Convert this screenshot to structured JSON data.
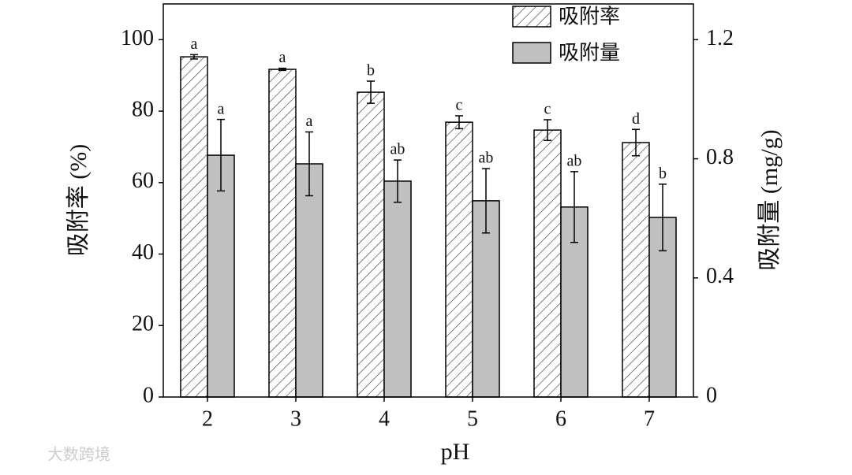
{
  "chart_data": {
    "type": "bar",
    "x_label": "pH",
    "y_label": "吸附率 (%)",
    "y2_label": "吸附量 (mg/g)",
    "categories": [
      "2",
      "3",
      "4",
      "5",
      "6",
      "7"
    ],
    "series": [
      {
        "name": "吸附率",
        "color": "#ffffff",
        "hatch": true,
        "values": [
          95.2,
          91.7,
          85.3,
          76.9,
          74.7,
          71.2
        ],
        "errors": [
          0.6,
          0.3,
          3.1,
          1.8,
          2.9,
          3.7
        ],
        "letters": [
          "a",
          "a",
          "b",
          "c",
          "c",
          "d"
        ]
      },
      {
        "name": "吸附量",
        "color": "#c0c0c0",
        "hatch": false,
        "axis": "y2",
        "values": [
          0.812,
          0.783,
          0.725,
          0.659,
          0.638,
          0.603
        ],
        "errors": [
          0.12,
          0.107,
          0.071,
          0.108,
          0.119,
          0.112
        ],
        "letters": [
          "a",
          "a",
          "ab",
          "ab",
          "ab",
          "b"
        ]
      }
    ],
    "ylim": [
      0,
      110
    ],
    "yticks": [
      0,
      20,
      40,
      60,
      80,
      100
    ],
    "y2lim": [
      0,
      1.32
    ],
    "y2ticks": [
      0,
      0.4,
      0.8,
      1.2
    ],
    "legend": "top-right",
    "watermark": "大数跨境"
  }
}
